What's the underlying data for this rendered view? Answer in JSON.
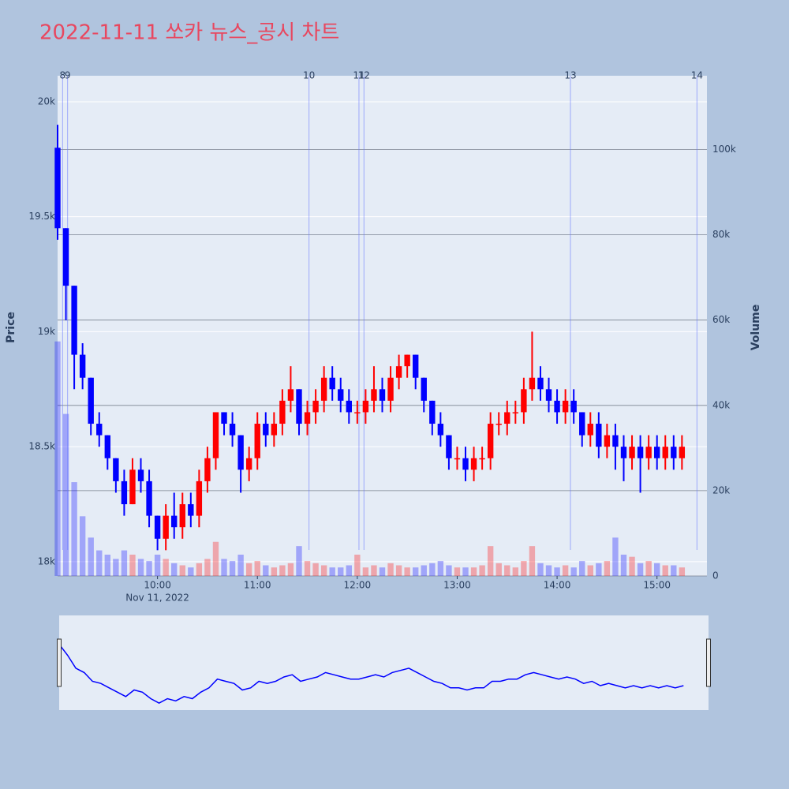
{
  "chart_data": {
    "type": "candlestick",
    "title": "2022-11-11 쏘카 뉴스_공시 차트",
    "y_label": "Price",
    "y2_label": "Volume",
    "xlim": [
      "09:00",
      "15:30"
    ],
    "xticks": [
      "10:00",
      "11:00",
      "12:00",
      "13:00",
      "14:00",
      "15:00"
    ],
    "xtick_date": "Nov 11, 2022",
    "ylim": [
      17938,
      20113
    ],
    "yticks": [
      {
        "value": 18000,
        "label": "18k"
      },
      {
        "value": 18500,
        "label": "18.5k"
      },
      {
        "value": 19000,
        "label": "19k"
      },
      {
        "value": 19500,
        "label": "19.5k"
      },
      {
        "value": 20000,
        "label": "20k"
      }
    ],
    "y2lim": [
      0,
      117300
    ],
    "y2ticks": [
      0,
      {
        "value": 20000,
        "label": "20k"
      },
      {
        "value": 40000,
        "label": "40k"
      },
      {
        "value": 60000,
        "label": "60k"
      },
      {
        "value": 80000,
        "label": "80k"
      },
      {
        "value": 100000,
        "label": "100k"
      }
    ],
    "increasing_color": "#ff0000",
    "decreasing_color": "#0000ff",
    "x": [
      "09:00",
      "09:05",
      "09:10",
      "09:15",
      "09:20",
      "09:25",
      "09:30",
      "09:35",
      "09:40",
      "09:45",
      "09:50",
      "09:55",
      "10:00",
      "10:05",
      "10:10",
      "10:15",
      "10:20",
      "10:25",
      "10:30",
      "10:35",
      "10:40",
      "10:45",
      "10:50",
      "10:55",
      "11:00",
      "11:05",
      "11:10",
      "11:15",
      "11:20",
      "11:25",
      "11:30",
      "11:35",
      "11:40",
      "11:45",
      "11:50",
      "11:55",
      "12:00",
      "12:05",
      "12:10",
      "12:15",
      "12:20",
      "12:25",
      "12:30",
      "12:35",
      "12:40",
      "12:45",
      "12:50",
      "12:55",
      "13:00",
      "13:05",
      "13:10",
      "13:15",
      "13:20",
      "13:25",
      "13:30",
      "13:35",
      "13:40",
      "13:45",
      "13:50",
      "13:55",
      "14:00",
      "14:05",
      "14:10",
      "14:15",
      "14:20",
      "14:25",
      "14:30",
      "14:35",
      "14:40",
      "14:45",
      "14:50",
      "14:55",
      "15:00",
      "15:05",
      "15:10",
      "15:15"
    ],
    "open": [
      19800,
      19450,
      19200,
      18900,
      18800,
      18600,
      18550,
      18450,
      18350,
      18250,
      18400,
      18350,
      18200,
      18100,
      18200,
      18150,
      18250,
      18200,
      18350,
      18450,
      18650,
      18600,
      18550,
      18400,
      18450,
      18600,
      18550,
      18600,
      18700,
      18750,
      18600,
      18650,
      18700,
      18800,
      18750,
      18700,
      18650,
      18650,
      18700,
      18750,
      18700,
      18800,
      18850,
      18900,
      18800,
      18700,
      18600,
      18550,
      18450,
      18450,
      18400,
      18450,
      18450,
      18600,
      18600,
      18650,
      18650,
      18750,
      18800,
      18750,
      18700,
      18650,
      18700,
      18650,
      18550,
      18600,
      18500,
      18550,
      18500,
      18450,
      18500,
      18450,
      18500,
      18450,
      18500,
      18450
    ],
    "high": [
      19900,
      19450,
      19200,
      18950,
      18800,
      18650,
      18550,
      18450,
      18400,
      18450,
      18450,
      18400,
      18200,
      18250,
      18300,
      18300,
      18300,
      18400,
      18500,
      18650,
      18650,
      18650,
      18550,
      18500,
      18650,
      18650,
      18650,
      18750,
      18850,
      18750,
      18700,
      18750,
      18850,
      18850,
      18800,
      18750,
      18700,
      18750,
      18850,
      18800,
      18850,
      18900,
      18900,
      18900,
      18800,
      18700,
      18650,
      18550,
      18500,
      18500,
      18500,
      18500,
      18650,
      18650,
      18700,
      18700,
      18800,
      19000,
      18850,
      18800,
      18750,
      18750,
      18750,
      18650,
      18650,
      18650,
      18600,
      18600,
      18550,
      18550,
      18550,
      18550,
      18550,
      18550,
      18550,
      18550
    ],
    "low": [
      19400,
      19050,
      18750,
      18750,
      18550,
      18500,
      18400,
      18300,
      18200,
      18250,
      18300,
      18150,
      18050,
      18050,
      18100,
      18100,
      18150,
      18150,
      18300,
      18400,
      18550,
      18500,
      18300,
      18350,
      18400,
      18500,
      18500,
      18550,
      18650,
      18550,
      18550,
      18600,
      18650,
      18700,
      18650,
      18600,
      18600,
      18600,
      18650,
      18650,
      18650,
      18750,
      18800,
      18750,
      18650,
      18550,
      18500,
      18400,
      18400,
      18350,
      18350,
      18400,
      18400,
      18550,
      18550,
      18600,
      18600,
      18700,
      18700,
      18650,
      18600,
      18600,
      18600,
      18500,
      18500,
      18450,
      18450,
      18400,
      18350,
      18400,
      18300,
      18400,
      18400,
      18400,
      18400,
      18400
    ],
    "close": [
      19450,
      19200,
      18900,
      18800,
      18600,
      18550,
      18450,
      18350,
      18250,
      18400,
      18350,
      18200,
      18100,
      18200,
      18150,
      18250,
      18200,
      18350,
      18450,
      18650,
      18600,
      18550,
      18400,
      18450,
      18600,
      18550,
      18600,
      18700,
      18750,
      18600,
      18650,
      18700,
      18800,
      18750,
      18700,
      18650,
      18650,
      18700,
      18750,
      18700,
      18800,
      18850,
      18900,
      18800,
      18700,
      18600,
      18550,
      18450,
      18450,
      18400,
      18450,
      18450,
      18600,
      18600,
      18650,
      18650,
      18750,
      18800,
      18750,
      18700,
      18650,
      18700,
      18650,
      18550,
      18600,
      18500,
      18550,
      18500,
      18450,
      18500,
      18450,
      18500,
      18450,
      18500,
      18450,
      18500
    ],
    "volume": [
      55000,
      38000,
      22000,
      14000,
      9000,
      6000,
      5000,
      4000,
      6000,
      5000,
      4000,
      3500,
      5000,
      4000,
      3000,
      2500,
      2000,
      3000,
      4000,
      8000,
      4000,
      3500,
      5000,
      3000,
      3500,
      2500,
      2000,
      2500,
      3000,
      7000,
      3500,
      3000,
      2500,
      2000,
      2000,
      2500,
      5000,
      2000,
      2500,
      2000,
      3000,
      2500,
      2000,
      2000,
      2500,
      3000,
      3500,
      2500,
      2000,
      2000,
      2000,
      2500,
      7000,
      3000,
      2500,
      2000,
      3500,
      7000,
      3000,
      2500,
      2000,
      2500,
      2000,
      3500,
      2500,
      3000,
      3500,
      9000,
      5000,
      4500,
      3000,
      3500,
      3000,
      2500,
      2500,
      2000
    ],
    "news": [
      {
        "label": "8",
        "time": "09:03"
      },
      {
        "label": "9",
        "time": "09:06"
      },
      {
        "label": "10",
        "time": "11:31"
      },
      {
        "label": "11",
        "time": "12:01"
      },
      {
        "label": "12",
        "time": "12:04"
      },
      {
        "label": "13",
        "time": "14:08"
      },
      {
        "label": "14",
        "time": "15:24"
      }
    ]
  }
}
